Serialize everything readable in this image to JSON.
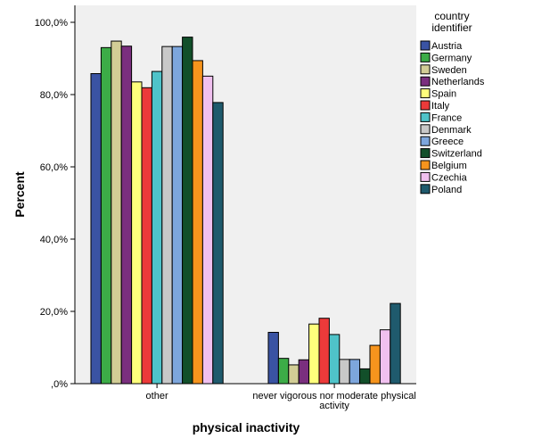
{
  "chart_data": {
    "type": "bar",
    "xlabel": "physical inactivity",
    "ylabel": "Percent",
    "ylim": [
      0,
      100
    ],
    "yticks": [
      "100,0%",
      "80,0%",
      "60,0%",
      "40,0%",
      "20,0%",
      ",0%"
    ],
    "categories": [
      "other",
      "never vigorous nor moderate physical activity"
    ],
    "category_label_lines": [
      [
        "other"
      ],
      [
        "never vigorous nor moderate physical",
        "activity"
      ]
    ],
    "legend": {
      "title_lines": [
        "country",
        "identifier"
      ],
      "placement": "right"
    },
    "grid": false,
    "series": [
      {
        "name": "Austria",
        "color": "#3a53a3",
        "values": [
          85.8,
          14.2
        ]
      },
      {
        "name": "Germany",
        "color": "#3cac47",
        "values": [
          93.0,
          7.0
        ]
      },
      {
        "name": "Sweden",
        "color": "#d2cd96",
        "values": [
          94.8,
          5.2
        ]
      },
      {
        "name": "Netherlands",
        "color": "#7a2f7e",
        "values": [
          93.4,
          6.6
        ]
      },
      {
        "name": "Spain",
        "color": "#ffff7c",
        "values": [
          83.5,
          16.5
        ]
      },
      {
        "name": "Italy",
        "color": "#ec3a3a",
        "values": [
          81.9,
          18.1
        ]
      },
      {
        "name": "France",
        "color": "#4fc3c9",
        "values": [
          86.4,
          13.6
        ]
      },
      {
        "name": "Denmark",
        "color": "#c8c8c8",
        "values": [
          93.3,
          6.7
        ]
      },
      {
        "name": "Greece",
        "color": "#7da6dc",
        "values": [
          93.3,
          6.7
        ]
      },
      {
        "name": "Switzerland",
        "color": "#124f2a",
        "values": [
          95.9,
          4.1
        ]
      },
      {
        "name": "Belgium",
        "color": "#f6941d",
        "values": [
          89.4,
          10.6
        ]
      },
      {
        "name": "Czechia",
        "color": "#f0c0ef",
        "values": [
          85.1,
          14.9
        ]
      },
      {
        "name": "Poland",
        "color": "#1f5a6d",
        "values": [
          77.8,
          22.2
        ]
      }
    ]
  }
}
